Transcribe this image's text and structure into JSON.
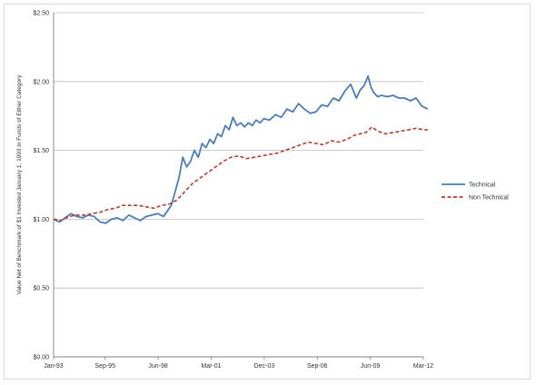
{
  "chart_data": {
    "type": "line",
    "title": "",
    "xlabel": "",
    "ylabel": "Value Net of Benchmark of $1 Invested January 1, 1993 in Funds of Either Category",
    "ylim": [
      0,
      2.5
    ],
    "y_ticks": [
      "$0.00",
      "$0.50",
      "$1.00",
      "$1.50",
      "$2.00",
      "$2.50"
    ],
    "y_tick_values": [
      0,
      0.5,
      1.0,
      1.5,
      2.0,
      2.5
    ],
    "x_ticks": [
      "Jan-93",
      "Sep-95",
      "Jun-98",
      "Mar-01",
      "Dec-03",
      "Sep-06",
      "Jun-09",
      "Mar-12"
    ],
    "x_tick_years": [
      1993.0,
      1995.67,
      1998.42,
      2001.17,
      2003.92,
      2006.67,
      2009.42,
      2012.17
    ],
    "grid": true,
    "legend_position": "right",
    "series": [
      {
        "name": "Technical",
        "color": "#4a7ebb",
        "style": "solid",
        "x": [
          1993.0,
          1993.3,
          1993.6,
          1993.9,
          1994.2,
          1994.5,
          1994.8,
          1995.1,
          1995.4,
          1995.7,
          1996.0,
          1996.3,
          1996.6,
          1996.9,
          1997.2,
          1997.5,
          1997.8,
          1998.1,
          1998.4,
          1998.7,
          1998.9,
          1999.1,
          1999.3,
          1999.5,
          1999.7,
          1999.9,
          2000.1,
          2000.3,
          2000.5,
          2000.7,
          2000.9,
          2001.1,
          2001.3,
          2001.5,
          2001.7,
          2001.9,
          2002.1,
          2002.3,
          2002.5,
          2002.7,
          2002.9,
          2003.1,
          2003.3,
          2003.5,
          2003.7,
          2003.9,
          2004.2,
          2004.5,
          2004.8,
          2005.1,
          2005.4,
          2005.7,
          2006.0,
          2006.3,
          2006.6,
          2006.9,
          2007.2,
          2007.5,
          2007.8,
          2008.1,
          2008.4,
          2008.7,
          2008.9,
          2009.1,
          2009.3,
          2009.45,
          2009.6,
          2009.8,
          2010.0,
          2010.3,
          2010.6,
          2010.9,
          2011.2,
          2011.5,
          2011.8,
          2012.1,
          2012.4
        ],
        "values": [
          1.0,
          0.98,
          1.01,
          1.04,
          1.02,
          1.01,
          1.03,
          1.02,
          0.98,
          0.97,
          1.0,
          1.01,
          0.99,
          1.03,
          1.01,
          0.99,
          1.02,
          1.03,
          1.04,
          1.02,
          1.06,
          1.1,
          1.2,
          1.3,
          1.45,
          1.38,
          1.42,
          1.5,
          1.45,
          1.55,
          1.52,
          1.58,
          1.55,
          1.62,
          1.6,
          1.68,
          1.65,
          1.74,
          1.68,
          1.7,
          1.67,
          1.7,
          1.68,
          1.72,
          1.7,
          1.73,
          1.72,
          1.76,
          1.74,
          1.8,
          1.78,
          1.84,
          1.8,
          1.77,
          1.78,
          1.83,
          1.82,
          1.88,
          1.86,
          1.93,
          1.98,
          1.88,
          1.94,
          1.97,
          2.04,
          1.96,
          1.92,
          1.89,
          1.9,
          1.89,
          1.9,
          1.88,
          1.88,
          1.86,
          1.88,
          1.82,
          1.8
        ]
      },
      {
        "name": "Non Technical",
        "color": "#c0392b",
        "style": "dashed",
        "x": [
          1993.0,
          1993.4,
          1993.8,
          1994.2,
          1994.6,
          1995.0,
          1995.4,
          1995.8,
          1996.2,
          1996.6,
          1997.0,
          1997.4,
          1997.8,
          1998.2,
          1998.6,
          1999.0,
          1999.4,
          1999.8,
          2000.2,
          2000.6,
          2001.0,
          2001.4,
          2001.8,
          2002.2,
          2002.6,
          2003.0,
          2003.4,
          2003.8,
          2004.2,
          2004.6,
          2005.0,
          2005.4,
          2005.8,
          2006.2,
          2006.6,
          2007.0,
          2007.4,
          2007.8,
          2008.2,
          2008.6,
          2008.9,
          2009.2,
          2009.5,
          2009.8,
          2010.2,
          2010.6,
          2011.0,
          2011.4,
          2011.8,
          2012.2,
          2012.4
        ],
        "values": [
          1.0,
          0.99,
          1.02,
          1.03,
          1.03,
          1.04,
          1.05,
          1.07,
          1.08,
          1.1,
          1.1,
          1.1,
          1.09,
          1.08,
          1.1,
          1.11,
          1.14,
          1.2,
          1.26,
          1.3,
          1.34,
          1.38,
          1.42,
          1.45,
          1.46,
          1.44,
          1.45,
          1.46,
          1.47,
          1.48,
          1.5,
          1.52,
          1.54,
          1.56,
          1.55,
          1.54,
          1.57,
          1.56,
          1.58,
          1.61,
          1.62,
          1.63,
          1.67,
          1.64,
          1.62,
          1.63,
          1.64,
          1.65,
          1.66,
          1.65,
          1.65
        ]
      }
    ]
  }
}
